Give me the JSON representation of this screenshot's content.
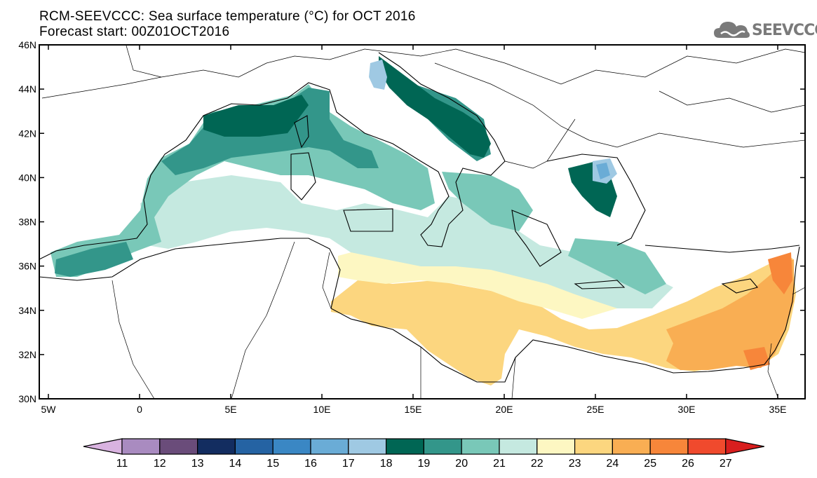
{
  "header": {
    "title_line1": "RCM-SEEVCCC: Sea surface temperature (°C) for OCT 2016",
    "title_line2": "Forecast start: 00Z01OCT2016"
  },
  "logo": {
    "text": "SEEVCCC",
    "icon": "cloud-icon"
  },
  "map": {
    "lon_range": [
      -5.5,
      36.5
    ],
    "lat_range": [
      30,
      46
    ],
    "x_ticks": [
      {
        "value": -5,
        "label": "5W"
      },
      {
        "value": 0,
        "label": "0"
      },
      {
        "value": 5,
        "label": "5E"
      },
      {
        "value": 10,
        "label": "10E"
      },
      {
        "value": 15,
        "label": "15E"
      },
      {
        "value": 20,
        "label": "20E"
      },
      {
        "value": 25,
        "label": "25E"
      },
      {
        "value": 30,
        "label": "30E"
      },
      {
        "value": 35,
        "label": "35E"
      }
    ],
    "y_ticks": [
      {
        "value": 30,
        "label": "30N"
      },
      {
        "value": 32,
        "label": "32N"
      },
      {
        "value": 34,
        "label": "34N"
      },
      {
        "value": 36,
        "label": "36N"
      },
      {
        "value": 38,
        "label": "38N"
      },
      {
        "value": 40,
        "label": "40N"
      },
      {
        "value": 42,
        "label": "42N"
      },
      {
        "value": 44,
        "label": "44N"
      },
      {
        "value": 46,
        "label": "46N"
      }
    ]
  },
  "colorbar": {
    "levels": [
      "11",
      "12",
      "13",
      "14",
      "15",
      "16",
      "17",
      "18",
      "19",
      "20",
      "21",
      "22",
      "23",
      "24",
      "25",
      "26",
      "27"
    ],
    "colors": [
      "#d9b3e0",
      "#a98bc0",
      "#6a4c7a",
      "#132d60",
      "#2563a3",
      "#3a87c4",
      "#6aacd6",
      "#9fc9e3",
      "#006654",
      "#33968a",
      "#79c8b8",
      "#c5e9e0",
      "#fdf7c2",
      "#fcd67f",
      "#f9ae53",
      "#f7863a",
      "#f04a2d",
      "#d81e1e"
    ]
  }
}
